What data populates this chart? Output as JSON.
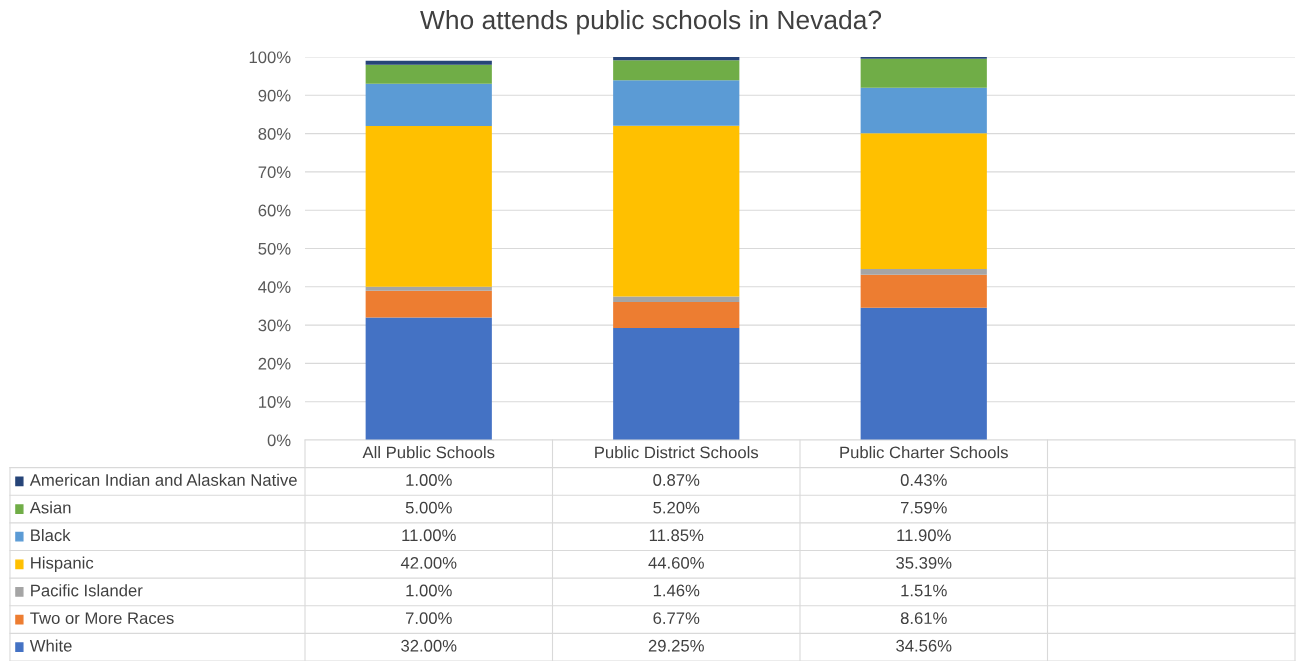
{
  "chart_data": {
    "type": "bar",
    "title": "Who attends public schools in Nevada?",
    "stacked": true,
    "categories": [
      "All Public Schools",
      "Public District Schools",
      "Public Charter Schools"
    ],
    "series": [
      {
        "name": "White",
        "color": "#4472c4",
        "values": [
          32.0,
          29.25,
          34.56
        ],
        "value_labels": [
          "32.00%",
          "29.25%",
          "34.56%"
        ]
      },
      {
        "name": "Two or More Races",
        "color": "#ed7d31",
        "values": [
          7.0,
          6.77,
          8.61
        ],
        "value_labels": [
          "7.00%",
          "6.77%",
          "8.61%"
        ]
      },
      {
        "name": "Pacific Islander",
        "color": "#a5a5a5",
        "values": [
          1.0,
          1.46,
          1.51
        ],
        "value_labels": [
          "1.00%",
          "1.46%",
          "1.51%"
        ]
      },
      {
        "name": "Hispanic",
        "color": "#ffc000",
        "values": [
          42.0,
          44.6,
          35.39
        ],
        "value_labels": [
          "42.00%",
          "44.60%",
          "35.39%"
        ]
      },
      {
        "name": "Black",
        "color": "#5b9bd5",
        "values": [
          11.0,
          11.85,
          11.9
        ],
        "value_labels": [
          "11.00%",
          "11.85%",
          "11.90%"
        ]
      },
      {
        "name": "Asian",
        "color": "#70ad47",
        "values": [
          5.0,
          5.2,
          7.59
        ],
        "value_labels": [
          "5.00%",
          "5.20%",
          "7.59%"
        ]
      },
      {
        "name": "American Indian and Alaskan Native",
        "color": "#264478",
        "values": [
          1.0,
          0.87,
          0.43
        ],
        "value_labels": [
          "1.00%",
          "0.87%",
          "0.43%"
        ]
      }
    ],
    "ylim": [
      0,
      100
    ],
    "yticks": [
      {
        "value": 0,
        "label": "0%"
      },
      {
        "value": 10,
        "label": "10%"
      },
      {
        "value": 20,
        "label": "20%"
      },
      {
        "value": 30,
        "label": "30%"
      },
      {
        "value": 40,
        "label": "40%"
      },
      {
        "value": 50,
        "label": "50%"
      },
      {
        "value": 60,
        "label": "60%"
      },
      {
        "value": 70,
        "label": "70%"
      },
      {
        "value": 80,
        "label": "80%"
      },
      {
        "value": 90,
        "label": "90%"
      },
      {
        "value": 100,
        "label": "100%"
      }
    ],
    "grid": "y",
    "legend": "bottom"
  }
}
